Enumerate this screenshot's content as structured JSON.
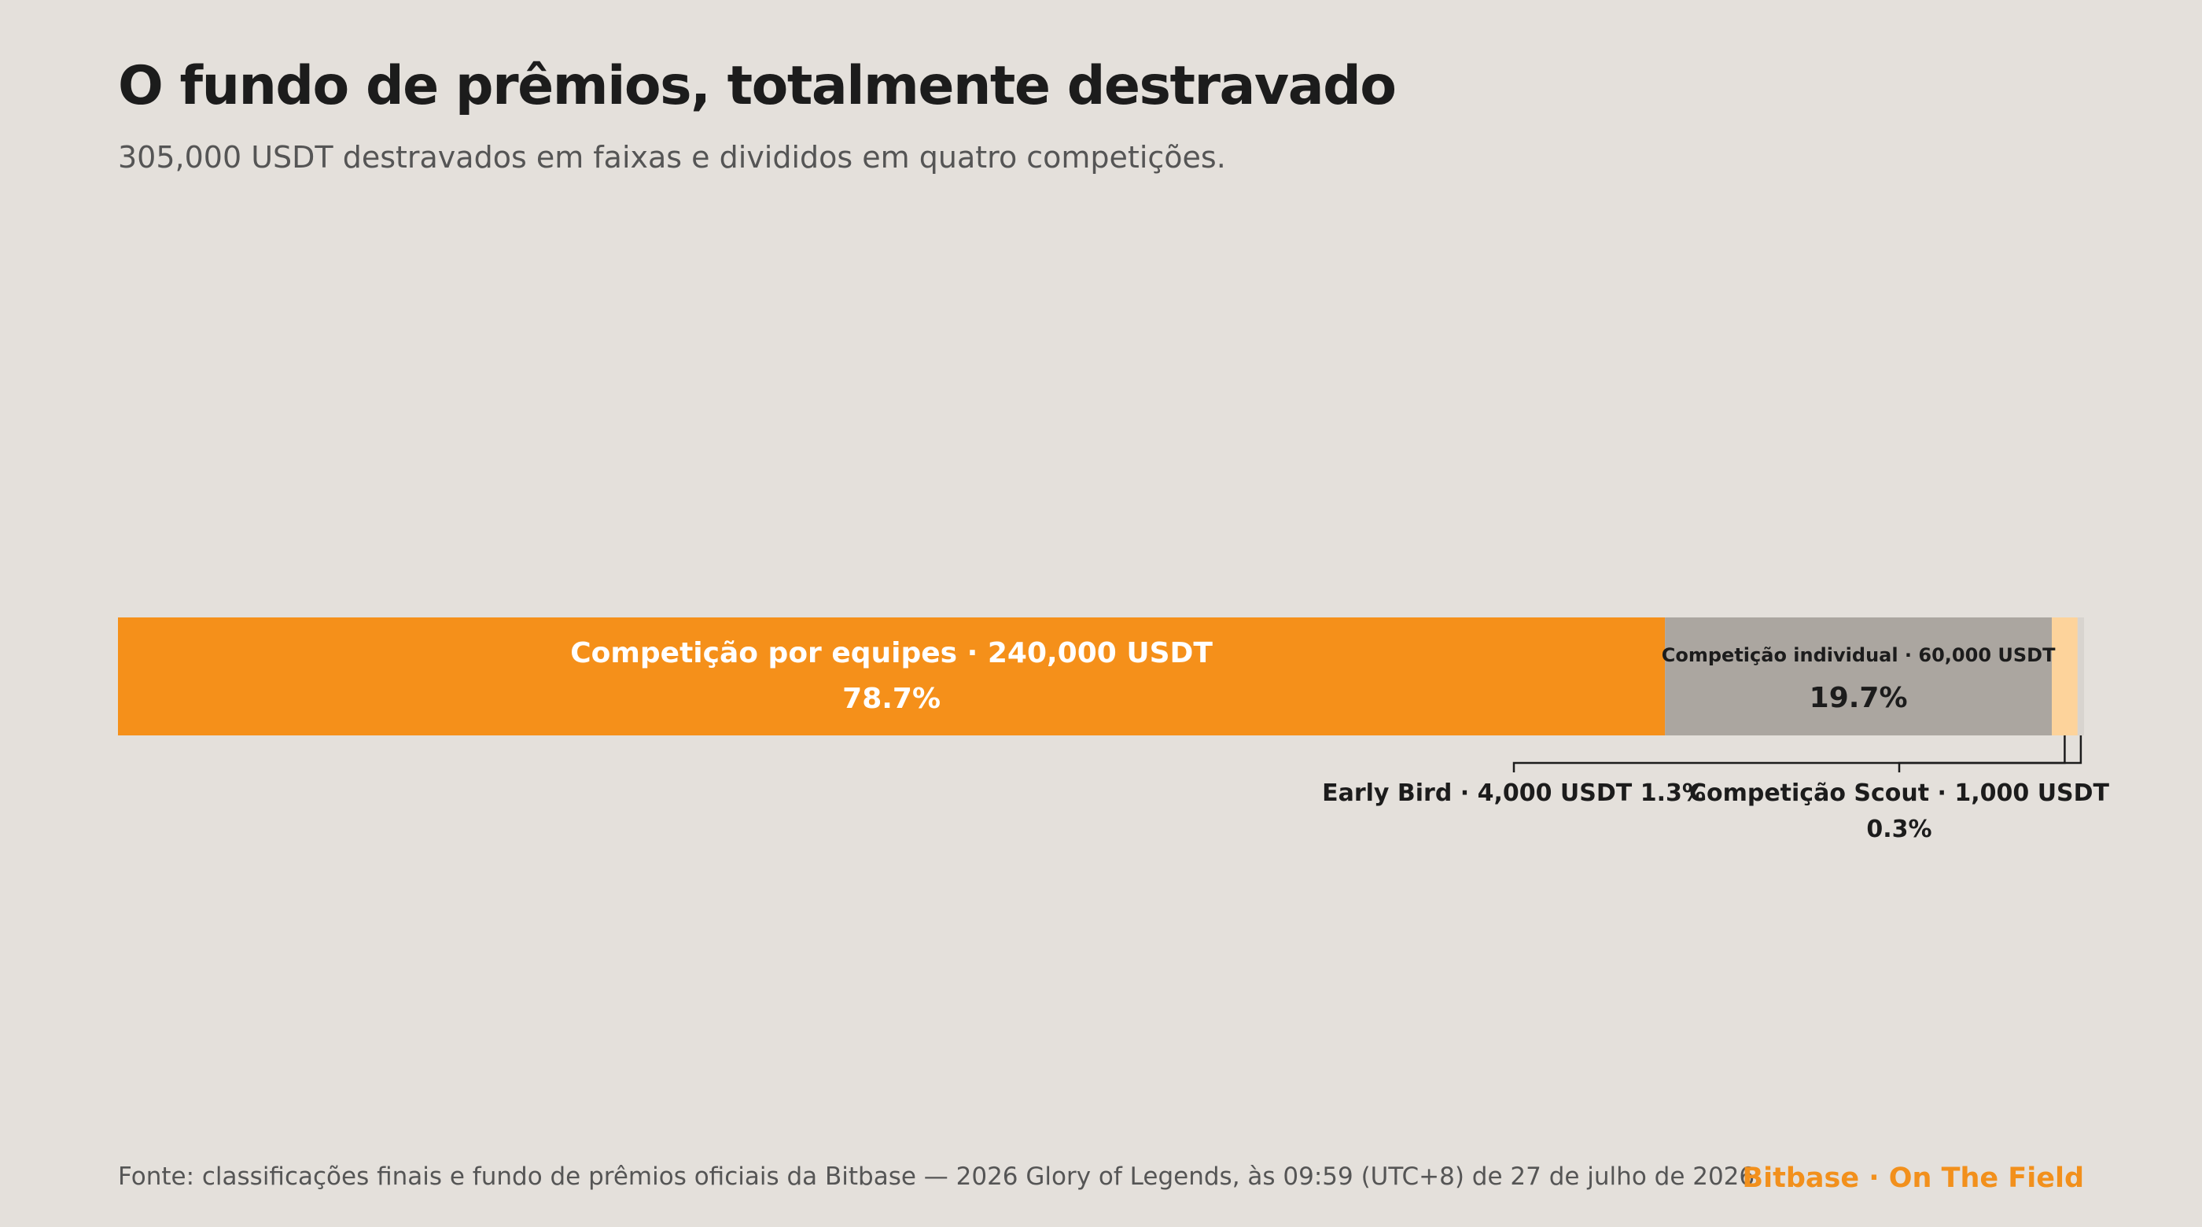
{
  "title": "O fundo de prêmios, totalmente destravado",
  "subtitle": "305,000 USDT destravados em faixas e divididos em quatro competições.",
  "footer": {
    "source": "Fonte: classificações finais e fundo de prêmios oficiais da Bitbase — 2026 Glory of Legends, às 09:59 (UTC+8) de 27 de julho de 2026.",
    "brand": "Bitbase · On The Field"
  },
  "colors": {
    "orange": "#f5901a",
    "gray": "#aba6a0",
    "light_orange": "#fdd39b",
    "light_gray": "#d8d4cf",
    "background": "#e4e0db",
    "brand": "#f2901c"
  },
  "chart_data": {
    "type": "bar",
    "orientation": "horizontal-stacked",
    "total": 305000,
    "unit": "USDT",
    "segments": [
      {
        "name": "Competição por equipes",
        "value": 240000,
        "value_label": "240,000 USDT",
        "percent_label": "78.7%",
        "color": "#f5901a",
        "label_position": "inside"
      },
      {
        "name": "Competição individual",
        "value": 60000,
        "value_label": "60,000 USDT",
        "percent_label": "19.7%",
        "color": "#aba6a0",
        "label_position": "inside"
      },
      {
        "name": "Early Bird",
        "value": 4000,
        "value_label": "4,000 USDT",
        "percent_label": "1.3%",
        "color": "#fdd39b",
        "label_position": "below"
      },
      {
        "name": "Competição Scout",
        "value": 1000,
        "value_label": "1,000 USDT",
        "percent_label": "0.3%",
        "color": "#d8d4cf",
        "label_position": "below"
      }
    ]
  }
}
